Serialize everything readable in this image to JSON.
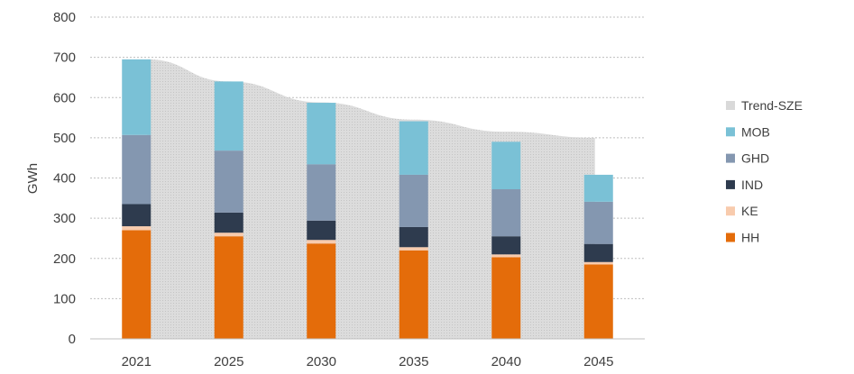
{
  "chart_data": {
    "type": "bar",
    "stacked": true,
    "title": "",
    "xlabel": "",
    "ylabel": "GWh",
    "ylim": [
      0,
      800
    ],
    "yticks": [
      0,
      100,
      200,
      300,
      400,
      500,
      600,
      700,
      800
    ],
    "grid": true,
    "legend_position": "right",
    "categories": [
      "2021",
      "2025",
      "2030",
      "2035",
      "2040",
      "2045"
    ],
    "series": [
      {
        "name": "HH",
        "color": "#E46C0A",
        "values": [
          270,
          255,
          237,
          220,
          203,
          185
        ]
      },
      {
        "name": "KE",
        "color": "#F8CBAD",
        "values": [
          10,
          9,
          9,
          8,
          7,
          6
        ]
      },
      {
        "name": "IND",
        "color": "#2E3B4E",
        "values": [
          55,
          50,
          48,
          50,
          45,
          45
        ]
      },
      {
        "name": "GHD",
        "color": "#8497B0",
        "values": [
          172,
          154,
          140,
          130,
          117,
          105
        ]
      },
      {
        "name": "MOB",
        "color": "#7AC1D6",
        "values": [
          188,
          172,
          153,
          133,
          118,
          67
        ]
      }
    ],
    "trend": {
      "name": "Trend-SZE",
      "color": "#D9D9D9",
      "values": [
        695,
        640,
        588,
        545,
        515,
        500
      ]
    },
    "legend_order": [
      "Trend-SZE",
      "MOB",
      "GHD",
      "IND",
      "KE",
      "HH"
    ]
  }
}
